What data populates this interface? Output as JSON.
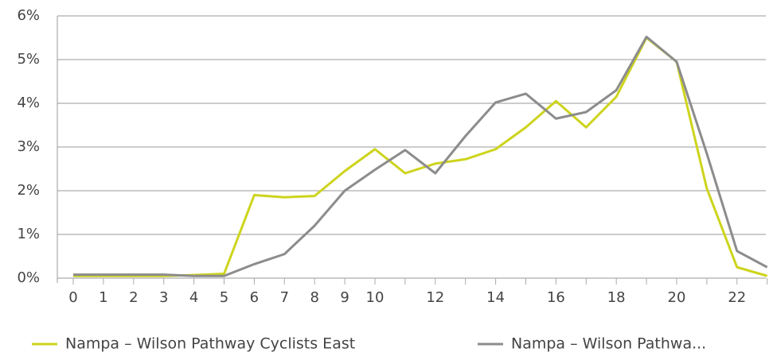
{
  "chart_data": {
    "type": "line",
    "categories": [
      "0",
      "1",
      "2",
      "3",
      "4",
      "5",
      "6",
      "7",
      "8",
      "9",
      "10",
      null,
      "12",
      null,
      "14",
      null,
      "16",
      null,
      "18",
      null,
      "20",
      null,
      "22",
      null
    ],
    "series": [
      {
        "name": "Nampa – Wilson Pathway Cyclists East",
        "color": "#cdd41c",
        "values": [
          0.05,
          0.05,
          0.05,
          0.05,
          0.07,
          0.1,
          1.9,
          1.85,
          1.88,
          2.45,
          2.95,
          2.4,
          2.62,
          2.72,
          2.95,
          3.45,
          4.05,
          3.45,
          4.15,
          5.5,
          4.95,
          2.05,
          0.25,
          0.05
        ]
      },
      {
        "name": "Nampa – Wilson Pathwa...",
        "color": "#8c8c8c",
        "values": [
          0.08,
          0.08,
          0.08,
          0.08,
          0.05,
          0.05,
          0.32,
          0.55,
          1.2,
          2.0,
          2.48,
          2.93,
          2.4,
          3.25,
          4.02,
          4.22,
          3.65,
          3.8,
          4.3,
          5.52,
          4.95,
          2.85,
          0.62,
          0.25
        ]
      }
    ],
    "ylim": [
      0,
      6
    ],
    "yticks": [
      {
        "value": 0,
        "label": "0%"
      },
      {
        "value": 1,
        "label": "1%"
      },
      {
        "value": 2,
        "label": "2%"
      },
      {
        "value": 3,
        "label": "3%"
      },
      {
        "value": 4,
        "label": "4%"
      },
      {
        "value": 5,
        "label": "5%"
      },
      {
        "value": 6,
        "label": "6%"
      }
    ],
    "grid": true
  }
}
